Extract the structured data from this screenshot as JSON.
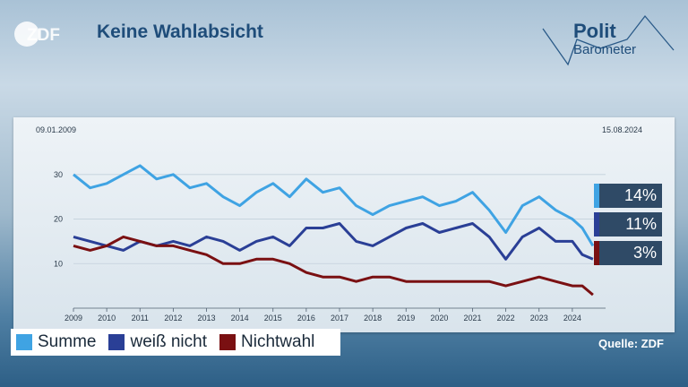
{
  "header": {
    "logo_text": "ZDF",
    "title": "Keine Wahlabsicht"
  },
  "brand": {
    "line1": "Polit",
    "line2": "Barometer"
  },
  "chart_data": {
    "type": "line",
    "title": "Keine Wahlabsicht",
    "date_start": "09.01.2009",
    "date_end": "15.08.2024",
    "x": [
      2009.0,
      2009.5,
      2010.0,
      2010.5,
      2011.0,
      2011.5,
      2012.0,
      2012.5,
      2013.0,
      2013.5,
      2014.0,
      2014.5,
      2015.0,
      2015.5,
      2016.0,
      2016.5,
      2017.0,
      2017.5,
      2018.0,
      2018.5,
      2019.0,
      2019.5,
      2020.0,
      2020.5,
      2021.0,
      2021.5,
      2022.0,
      2022.5,
      2023.0,
      2023.5,
      2024.0,
      2024.3,
      2024.62
    ],
    "xticks": [
      "2009",
      "2010",
      "2011",
      "2012",
      "2013",
      "2014",
      "2015",
      "2016",
      "2017",
      "2018",
      "2019",
      "2020",
      "2021",
      "2022",
      "2023",
      "2024"
    ],
    "yticks": [
      10,
      20,
      30
    ],
    "ylim": [
      0,
      37
    ],
    "xlim": [
      2009,
      2025
    ],
    "series": [
      {
        "name": "Summe",
        "color": "#3fa3e3",
        "values": [
          30,
          27,
          28,
          30,
          32,
          29,
          30,
          27,
          28,
          25,
          23,
          26,
          28,
          25,
          29,
          26,
          27,
          23,
          21,
          23,
          24,
          25,
          23,
          24,
          26,
          22,
          17,
          23,
          25,
          22,
          20,
          18,
          14
        ]
      },
      {
        "name": "weiß nicht",
        "color": "#2a3f96",
        "values": [
          16,
          15,
          14,
          13,
          15,
          14,
          15,
          14,
          16,
          15,
          13,
          15,
          16,
          14,
          18,
          18,
          19,
          15,
          14,
          16,
          18,
          19,
          17,
          18,
          19,
          16,
          11,
          16,
          18,
          15,
          15,
          12,
          11
        ]
      },
      {
        "name": "Nichtwahl",
        "color": "#7a1012",
        "values": [
          14,
          13,
          14,
          16,
          15,
          14,
          14,
          13,
          12,
          10,
          10,
          11,
          11,
          10,
          8,
          7,
          7,
          6,
          7,
          7,
          6,
          6,
          6,
          6,
          6,
          6,
          5,
          6,
          7,
          6,
          5,
          5,
          3
        ]
      }
    ],
    "end_labels": [
      "14%",
      "11%",
      "3%"
    ],
    "legend_position": "bottom-left",
    "grid": true
  },
  "footer": {
    "source": "Quelle: ZDF"
  }
}
